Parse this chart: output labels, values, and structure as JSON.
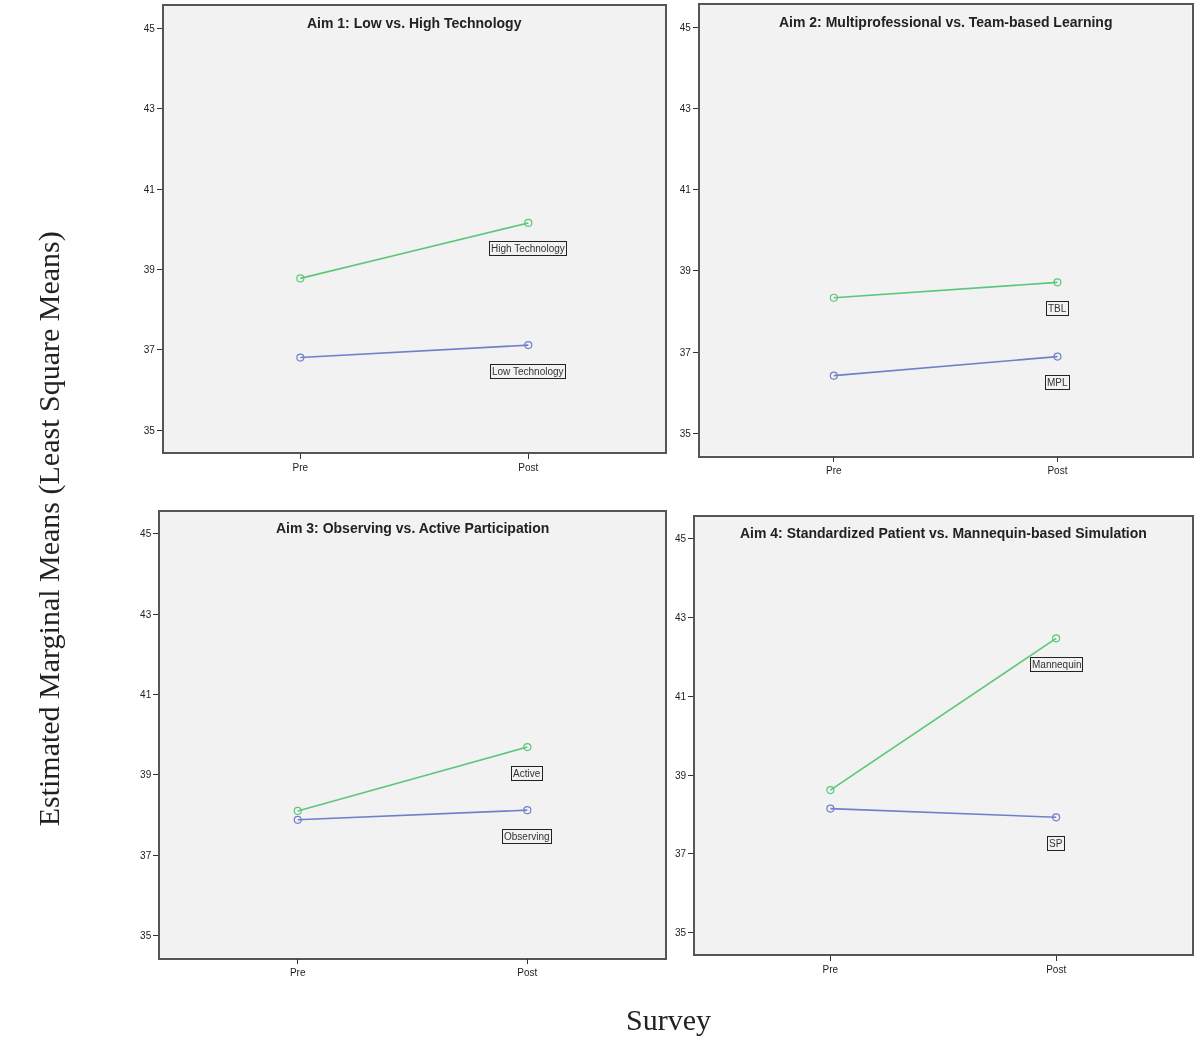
{
  "chart_data": [
    {
      "type": "line",
      "title": "Aim 1: Low vs. High Technology",
      "ylabel": "Estimated Marginal Means (Least Square Means)",
      "xlabel": "Survey",
      "categories": [
        "Pre",
        "Post"
      ],
      "ylim": [
        34.45,
        45.55
      ],
      "yticks": [
        35,
        37,
        39,
        41,
        43,
        45
      ],
      "marker": "circle",
      "grid": false,
      "legend": false,
      "series": [
        {
          "name": "High Technology",
          "color": "#5cc77a",
          "values": [
            38.78,
            40.16
          ]
        },
        {
          "name": "Low Technology",
          "color": "#6f80c8",
          "values": [
            36.81,
            37.12
          ]
        }
      ]
    },
    {
      "type": "line",
      "title": "Aim 2: Multiprofessional vs. Team-based Learning",
      "categories": [
        "Pre",
        "Post"
      ],
      "ylim": [
        34.45,
        45.55
      ],
      "yticks": [
        35,
        37,
        39,
        41,
        43,
        45
      ],
      "marker": "circle",
      "grid": false,
      "legend": false,
      "series": [
        {
          "name": "TBL",
          "color": "#5cc77a",
          "values": [
            38.34,
            38.72
          ]
        },
        {
          "name": "MPL",
          "color": "#6f80c8",
          "values": [
            36.42,
            36.89
          ]
        }
      ]
    },
    {
      "type": "line",
      "title": "Aim 3: Observing vs. Active Participation",
      "categories": [
        "Pre",
        "Post"
      ],
      "ylim": [
        34.45,
        45.55
      ],
      "yticks": [
        35,
        37,
        39,
        41,
        43,
        45
      ],
      "marker": "circle",
      "grid": false,
      "legend": false,
      "series": [
        {
          "name": "Active",
          "color": "#5cc77a",
          "values": [
            38.1,
            39.69
          ]
        },
        {
          "name": "Observing",
          "color": "#6f80c8",
          "values": [
            37.88,
            38.12
          ]
        }
      ]
    },
    {
      "type": "line",
      "title": "Aim 4: Standardized Patient vs. Mannequin-based Simulation",
      "categories": [
        "Pre",
        "Post"
      ],
      "ylim": [
        34.45,
        45.55
      ],
      "yticks": [
        35,
        37,
        39,
        41,
        43,
        45
      ],
      "marker": "circle",
      "grid": false,
      "legend": false,
      "series": [
        {
          "name": "Mannequin",
          "color": "#5cc77a",
          "values": [
            38.62,
            42.47
          ]
        },
        {
          "name": "SP",
          "color": "#6f80c8",
          "values": [
            38.15,
            37.93
          ]
        }
      ]
    }
  ]
}
